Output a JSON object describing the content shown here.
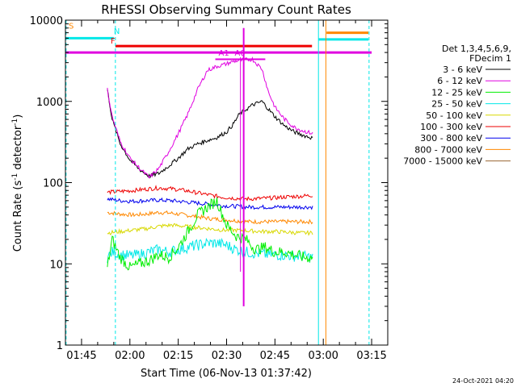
{
  "chart_data": {
    "type": "line",
    "title": "RHESSI Observing Summary Count Rates",
    "xlabel": "Start Time (06-Nov-13 01:37:42)",
    "ylabel_main": "Count Rate (s",
    "ylabel_sup": "-1",
    "ylabel_tail": " detector",
    "ylabel_close": ")",
    "yscale": "log",
    "ylim": [
      1,
      10000
    ],
    "xlim_minutes": [
      100,
      200
    ],
    "x_ticks": [
      {
        "m": 105,
        "label": "01:45"
      },
      {
        "m": 120,
        "label": "02:00"
      },
      {
        "m": 135,
        "label": "02:15"
      },
      {
        "m": 150,
        "label": "02:30"
      },
      {
        "m": 165,
        "label": "02:45"
      },
      {
        "m": 180,
        "label": "03:00"
      },
      {
        "m": 195,
        "label": "03:15"
      }
    ],
    "y_ticks": [
      {
        "v": 1,
        "label": "1"
      },
      {
        "v": 10,
        "label": "10"
      },
      {
        "v": 100,
        "label": "100"
      },
      {
        "v": 1000,
        "label": "1000"
      },
      {
        "v": 10000,
        "label": "10000"
      }
    ],
    "legend_header": [
      "Det 1,3,4,5,6,9,",
      "FDecim 1"
    ],
    "series": [
      {
        "name": "3 - 6 keV",
        "color": "#000000",
        "x": [
          113,
          114.5,
          117,
          120,
          123,
          126,
          129,
          132,
          135,
          138,
          141,
          144,
          147,
          150,
          152,
          154,
          158,
          161,
          163,
          165,
          168,
          171,
          174,
          177
        ],
        "y": [
          1400,
          600,
          300,
          190,
          145,
          120,
          130,
          160,
          200,
          260,
          300,
          330,
          360,
          420,
          520,
          700,
          900,
          1000,
          800,
          650,
          500,
          420,
          380,
          350
        ]
      },
      {
        "name": "6 - 12 keV",
        "color": "#e000e0",
        "x": [
          113,
          114.5,
          117,
          120,
          123,
          126,
          129,
          132,
          135,
          138,
          141,
          144,
          147,
          150,
          152,
          154,
          158,
          161,
          163,
          165,
          168,
          171,
          174,
          177
        ],
        "y": [
          1400,
          650,
          320,
          200,
          150,
          115,
          150,
          240,
          400,
          700,
          1400,
          2400,
          2700,
          2900,
          3100,
          3200,
          3300,
          2500,
          1300,
          850,
          600,
          480,
          430,
          400
        ]
      },
      {
        "name": "12 - 25 keV",
        "color": "#00ee00",
        "x": [
          113,
          114.5,
          117,
          120,
          123,
          126,
          129,
          132,
          135,
          138,
          141,
          144,
          147,
          150,
          153,
          156,
          159,
          162,
          165,
          168,
          171,
          174,
          177
        ],
        "y": [
          9,
          20,
          12,
          9,
          10,
          11,
          13,
          12,
          16,
          25,
          40,
          50,
          60,
          30,
          22,
          20,
          15,
          16,
          14,
          14,
          13,
          12,
          12
        ]
      },
      {
        "name": "25 - 50 keV",
        "color": "#00e8e8",
        "x": [
          113,
          114.5,
          117,
          120,
          123,
          126,
          129,
          132,
          135,
          138,
          141,
          144,
          147,
          150,
          153,
          156,
          159,
          162,
          165,
          168,
          171,
          174,
          177
        ],
        "y": [
          12,
          14,
          13,
          12.5,
          13,
          14,
          15,
          14,
          15,
          16,
          17,
          18,
          18,
          17,
          15,
          14,
          13.5,
          13,
          13,
          12.8,
          12.5,
          12.3,
          12
        ]
      },
      {
        "name": "50 - 100 keV",
        "color": "#d8d800",
        "x": [
          113,
          117,
          121,
          125,
          129,
          133,
          137,
          141,
          145,
          149,
          153,
          157,
          161,
          165,
          169,
          173,
          177
        ],
        "y": [
          24,
          25,
          26,
          27,
          29,
          30,
          29,
          28,
          27,
          26,
          26,
          25.5,
          25,
          25,
          24.5,
          24,
          24
        ]
      },
      {
        "name": "100 - 300 keV",
        "color": "#ee0000",
        "x": [
          113,
          117,
          121,
          125,
          129,
          133,
          137,
          141,
          145,
          149,
          153,
          157,
          161,
          165,
          169,
          173,
          177
        ],
        "y": [
          76,
          78,
          80,
          83,
          86,
          84,
          80,
          75,
          70,
          66,
          64,
          63,
          64,
          65,
          67,
          68,
          70
        ]
      },
      {
        "name": "300 - 800 keV",
        "color": "#0000ee",
        "x": [
          113,
          117,
          121,
          125,
          129,
          133,
          137,
          141,
          145,
          149,
          153,
          157,
          161,
          165,
          169,
          173,
          177
        ],
        "y": [
          63,
          60,
          59,
          60,
          61,
          60,
          58,
          56,
          54,
          52,
          51,
          50,
          50,
          50,
          50,
          50,
          50
        ]
      },
      {
        "name": "800 - 7000 keV",
        "color": "#ff8800",
        "x": [
          113,
          117,
          121,
          125,
          129,
          133,
          137,
          141,
          145,
          149,
          153,
          157,
          161,
          165,
          169,
          173,
          177
        ],
        "y": [
          43,
          41,
          40,
          41,
          43,
          42,
          40,
          38,
          36,
          35,
          34,
          33,
          33,
          33,
          33,
          33,
          33
        ]
      },
      {
        "name": "7000 - 15000 keV",
        "color": "#996633",
        "x": [],
        "y": []
      }
    ],
    "annotations": [
      {
        "label": "S",
        "color": "#ff8800",
        "x_m": 101
      },
      {
        "label": "N",
        "color": "#00e8e8",
        "x_m": 115
      },
      {
        "label": "F",
        "color": "#ee0000",
        "x_m": 114
      },
      {
        "label": "A1",
        "color": "#e000e0",
        "x_m": 147.5
      },
      {
        "label": "A0",
        "color": "#e000e0",
        "x_m": 152.5
      }
    ],
    "footer_date": "24-Oct-2021 04:20"
  }
}
